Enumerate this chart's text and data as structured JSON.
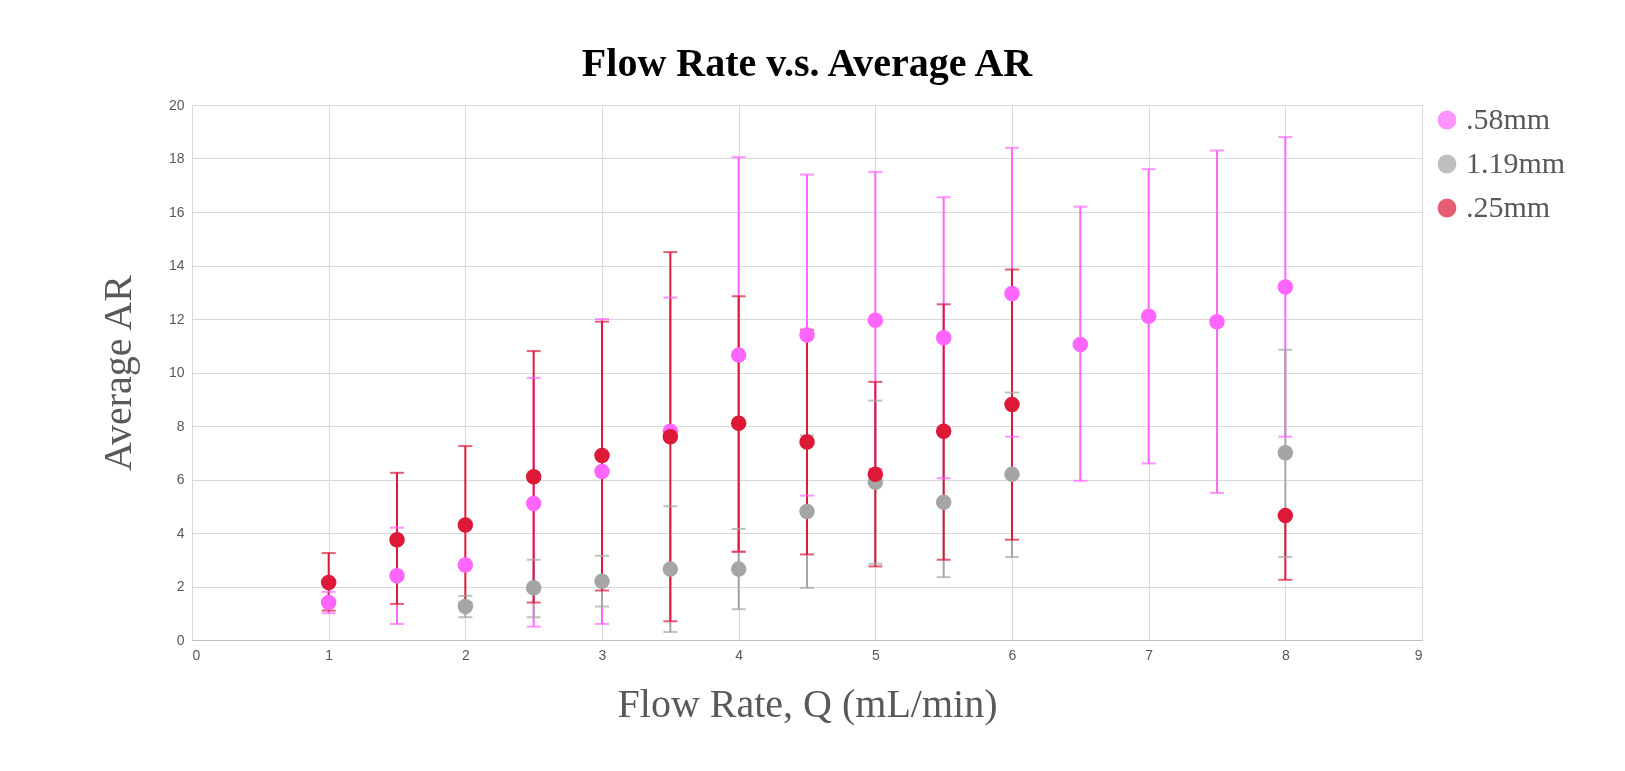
{
  "chart_data": {
    "type": "scatter",
    "title": "Flow Rate v.s. Average AR",
    "xlabel": "Flow Rate, Q (mL/min)",
    "ylabel": "Average AR",
    "xlim": [
      0,
      9
    ],
    "xticks": [
      0,
      1,
      2,
      3,
      4,
      5,
      6,
      7,
      8,
      9
    ],
    "ylim": [
      0,
      20
    ],
    "yticks": [
      0,
      2,
      4,
      6,
      8,
      10,
      12,
      14,
      16,
      18,
      20
    ],
    "grid": true,
    "legend": "right",
    "marker": "circle",
    "series": [
      {
        "name": ".58mm",
        "color": "#ff66ff",
        "x": [
          1,
          1.5,
          2,
          2.5,
          3,
          3.5,
          4,
          4.5,
          5,
          5.5,
          6,
          6.5,
          7,
          7.5,
          8
        ],
        "values": [
          1.4,
          2.4,
          2.8,
          5.1,
          6.3,
          7.8,
          10.65,
          11.4,
          11.95,
          11.3,
          12.95,
          11.05,
          12.1,
          11.9,
          13.2
        ],
        "errors": [
          [
            1.0,
            1.8
          ],
          [
            0.6,
            4.2
          ],
          null,
          [
            0.5,
            9.8
          ],
          [
            0.6,
            12.0
          ],
          [
            7.8,
            12.8
          ],
          [
            3.3,
            18.05
          ],
          [
            5.4,
            17.4
          ],
          [
            6.4,
            17.5
          ],
          [
            6.05,
            16.55
          ],
          [
            7.6,
            18.4
          ],
          [
            5.95,
            16.2
          ],
          [
            6.6,
            17.6
          ],
          [
            5.5,
            18.3
          ],
          [
            7.6,
            18.8
          ]
        ]
      },
      {
        "name": "1.19mm",
        "color": "#a5a5a5",
        "x": [
          2,
          2.5,
          3,
          3.5,
          4,
          4.5,
          5,
          5.5,
          6,
          8
        ],
        "values": [
          1.25,
          1.95,
          2.2,
          2.65,
          2.65,
          4.8,
          5.9,
          5.15,
          6.2,
          7.0
        ],
        "errors": [
          [
            0.85,
            1.65
          ],
          [
            0.85,
            3.0
          ],
          [
            1.25,
            3.15
          ],
          [
            0.3,
            5.0
          ],
          [
            1.15,
            4.15
          ],
          [
            1.95,
            7.65
          ],
          [
            2.85,
            8.95
          ],
          [
            2.35,
            7.95
          ],
          [
            3.1,
            9.25
          ],
          [
            3.1,
            10.85
          ]
        ]
      },
      {
        "name": ".25mm",
        "color": "#dc1a37",
        "x": [
          1,
          1.5,
          2,
          2.5,
          3,
          3.5,
          4,
          4.5,
          5,
          5.5,
          6,
          8
        ],
        "values": [
          2.15,
          3.75,
          4.3,
          6.1,
          6.9,
          7.6,
          8.1,
          7.4,
          6.2,
          7.8,
          8.8,
          4.65
        ],
        "errors": [
          [
            1.1,
            3.25
          ],
          [
            1.35,
            6.25
          ],
          [
            1.4,
            7.25
          ],
          [
            1.4,
            10.8
          ],
          [
            1.85,
            11.9
          ],
          [
            0.7,
            14.5
          ],
          [
            3.3,
            12.85
          ],
          [
            3.2,
            11.6
          ],
          [
            2.75,
            9.65
          ],
          [
            3.0,
            12.55
          ],
          [
            3.75,
            13.85
          ],
          [
            2.25,
            4.65
          ]
        ]
      }
    ]
  }
}
